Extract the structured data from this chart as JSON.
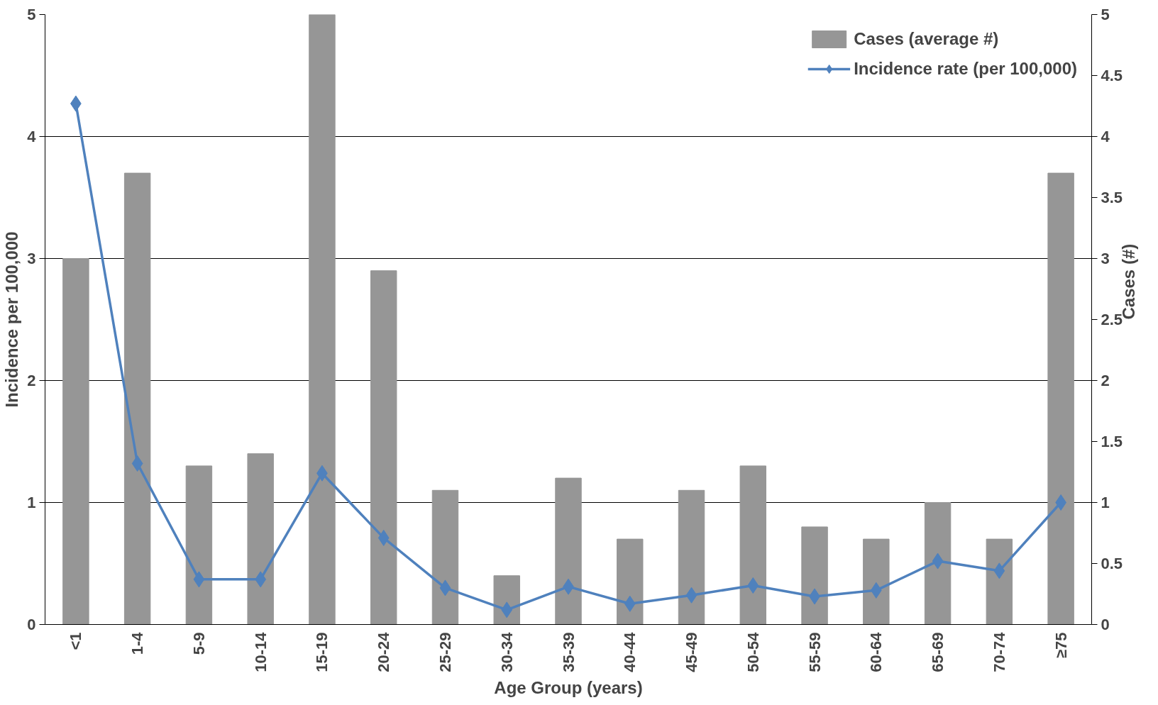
{
  "chart_data": {
    "type": "bar",
    "xlabel": "Age Group (years)",
    "ylabel": "Incidence per 100,000",
    "y2label": "Cases (#)",
    "categories": [
      "<1",
      "1-4",
      "5-9",
      "10-14",
      "15-19",
      "20-24",
      "25-29",
      "30-34",
      "35-39",
      "40-44",
      "45-49",
      "50-54",
      "55-59",
      "60-64",
      "65-69",
      "70-74",
      "≥75"
    ],
    "series": [
      {
        "name": "Cases (average #)",
        "color": "#969696",
        "values": [
          3.0,
          3.7,
          1.3,
          1.4,
          5.0,
          2.9,
          1.1,
          0.4,
          1.2,
          0.7,
          1.1,
          1.3,
          0.8,
          0.7,
          1.0,
          0.7,
          3.7
        ]
      },
      {
        "name": "Incidence rate (per 100,000)",
        "type": "line",
        "color": "#4f81bd",
        "marker": "diamond",
        "values": [
          4.27,
          1.32,
          0.37,
          0.37,
          1.24,
          0.71,
          0.3,
          0.12,
          0.31,
          0.17,
          0.24,
          0.32,
          0.23,
          0.28,
          0.52,
          0.44,
          1.0
        ]
      }
    ],
    "ylim": [
      0,
      5
    ],
    "yticks": [
      0,
      1,
      2,
      3,
      4,
      5
    ],
    "y2lim": [
      0,
      5
    ],
    "y2ticks": [
      0,
      0.5,
      1,
      1.5,
      2,
      2.5,
      3,
      3.5,
      4,
      4.5,
      5
    ],
    "grid": "y",
    "legend": "top right"
  }
}
